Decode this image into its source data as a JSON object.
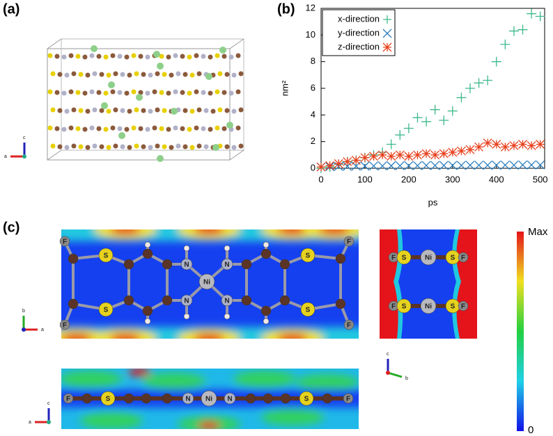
{
  "panel_labels": [
    "(a)",
    "(b)",
    "(c)"
  ],
  "axis_names": [
    "a",
    "b",
    "c"
  ],
  "atoms": {
    "fluorine": "F",
    "sulfur": "S",
    "nitrogen": "N",
    "nickel": "Ni"
  },
  "colorbar": {
    "max_label": "Max",
    "min_label": "0"
  },
  "chart_data": {
    "type": "scatter",
    "xlabel": "ps",
    "ylabel": "nm²",
    "x": [
      0,
      20,
      40,
      60,
      80,
      100,
      120,
      140,
      160,
      180,
      200,
      220,
      240,
      260,
      280,
      300,
      320,
      340,
      360,
      380,
      400,
      420,
      440,
      460,
      480,
      500
    ],
    "series": [
      {
        "name": "x-direction",
        "color": "#3cb98a",
        "marker": "plus",
        "values": [
          0,
          0.1,
          0.3,
          0.5,
          0.6,
          0.8,
          1.0,
          1.2,
          1.8,
          2.5,
          3.0,
          3.8,
          3.5,
          4.4,
          3.6,
          4.3,
          5.3,
          6.0,
          6.4,
          6.6,
          8.0,
          9.3,
          10.3,
          10.4,
          11.6,
          11.4
        ]
      },
      {
        "name": "y-direction",
        "color": "#2a7fc0",
        "marker": "cross",
        "values": [
          0.1,
          0.12,
          0.14,
          0.15,
          0.16,
          0.17,
          0.18,
          0.18,
          0.19,
          0.2,
          0.2,
          0.2,
          0.21,
          0.21,
          0.22,
          0.22,
          0.22,
          0.23,
          0.23,
          0.23,
          0.24,
          0.24,
          0.24,
          0.25,
          0.25,
          0.25
        ]
      },
      {
        "name": "z-direction",
        "color": "#e8401c",
        "marker": "star",
        "values": [
          0.1,
          0.2,
          0.35,
          0.5,
          0.6,
          0.8,
          0.9,
          1.0,
          0.9,
          1.0,
          0.9,
          1.0,
          1.1,
          1.0,
          1.1,
          1.2,
          1.3,
          1.4,
          1.6,
          1.9,
          1.8,
          1.6,
          1.7,
          1.8,
          1.7,
          1.8
        ]
      }
    ],
    "xlim": [
      0,
      510
    ],
    "ylim": [
      0,
      12
    ],
    "xticks": [
      0,
      100,
      200,
      300,
      400,
      500
    ],
    "yticks": [
      0,
      2,
      4,
      6,
      8,
      10,
      12
    ],
    "legend": "upper left"
  }
}
